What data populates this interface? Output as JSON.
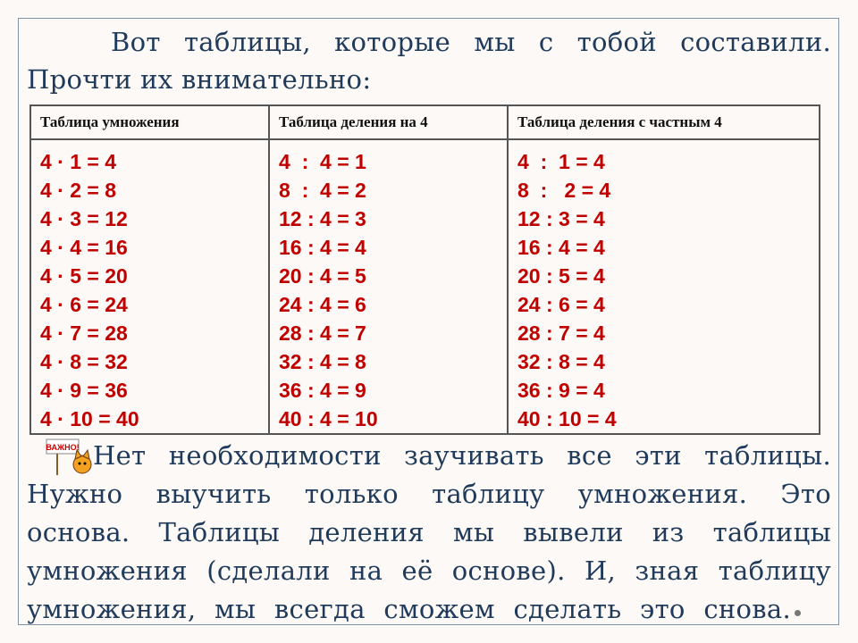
{
  "intro": {
    "line1": "Вот таблицы, которые мы с тобой составили.",
    "line2": "Прочти их внимательно:"
  },
  "table": {
    "headers": [
      "Таблица  умножения",
      "Таблица  деления на 4",
      "Таблица  деления  с частным 4"
    ],
    "columns": [
      [
        "4 · 1 = 4",
        "4 · 2 = 8",
        "4 · 3 = 12",
        "4 · 4 = 16",
        "4 · 5 = 20",
        "4 · 6 = 24",
        "4 · 7 = 28",
        "4 · 8 = 32",
        "4 · 9 = 36",
        "4 · 10 = 40"
      ],
      [
        "4  :  4 = 1",
        "8  :  4 = 2",
        "12 : 4 = 3",
        "16 : 4 = 4",
        "20 : 4 = 5",
        "24 : 4 = 6",
        "28 : 4 = 7",
        "32 : 4 = 8",
        "36 : 4 = 9",
        "40 : 4 = 10"
      ],
      [
        "4  :  1 = 4",
        "8  :   2 = 4",
        "12 : 3 = 4",
        "16 : 4 = 4",
        "20 : 5 = 4",
        "24 : 6 = 4",
        "28 : 7 = 4",
        "32 : 8 = 4",
        "36 : 9 = 4",
        "40 : 10 = 4"
      ]
    ]
  },
  "note": {
    "sign_text": "ВАЖНО!",
    "lines": [
      "Нет необходимости заучивать все эти таблицы.",
      "Нужно выучить только таблицу умножения. Это",
      "основа. Таблицы деления мы вывели из таблицы",
      "умножения (сделали на её основе). И, зная таблицу",
      "умножения, мы всегда сможем сделать это снова."
    ]
  },
  "colors": {
    "text": "#1f3a5a",
    "numbers": "#c00000"
  }
}
